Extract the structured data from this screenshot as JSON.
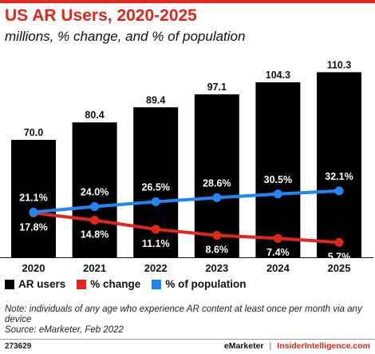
{
  "chart_data": {
    "type": "bar",
    "title": "US AR Users, 2020-2025",
    "subtitle": "millions, % change, and % of population",
    "categories": [
      "2020",
      "2021",
      "2022",
      "2023",
      "2024",
      "2025"
    ],
    "series": [
      {
        "name": "AR users",
        "type": "bar",
        "values": [
          70.0,
          80.4,
          89.4,
          97.1,
          104.3,
          110.3
        ],
        "labels": [
          "70.0",
          "80.4",
          "89.4",
          "97.1",
          "104.3",
          "110.3"
        ]
      },
      {
        "name": "% change",
        "type": "line",
        "values": [
          17.8,
          14.8,
          11.1,
          8.6,
          7.4,
          5.7
        ],
        "labels": [
          "17.8%",
          "14.8%",
          "11.1%",
          "8.6%",
          "7.4%",
          "5.7%"
        ]
      },
      {
        "name": "% of population",
        "type": "line",
        "values": [
          21.1,
          24.0,
          26.5,
          28.6,
          30.5,
          32.1
        ],
        "labels": [
          "21.1%",
          "24.0%",
          "26.5%",
          "28.6%",
          "30.5%",
          "32.1%"
        ]
      }
    ],
    "legend_position": "bottom-left",
    "grid": false
  },
  "colors": {
    "bar": "#000000",
    "change": "#e1261c",
    "population": "#1e86f5",
    "brand": "#e1261c"
  },
  "legend": {
    "bar": "AR users",
    "change": "% change",
    "population": "% of population"
  },
  "note": "Note: individuals of any age who experience AR content at least once per month via any device",
  "source": "Source: eMarketer, Feb 2022",
  "footer": {
    "id": "273629",
    "brand1": "eMarketer",
    "separator": "|",
    "brand2": "InsiderIntelligence.com"
  }
}
